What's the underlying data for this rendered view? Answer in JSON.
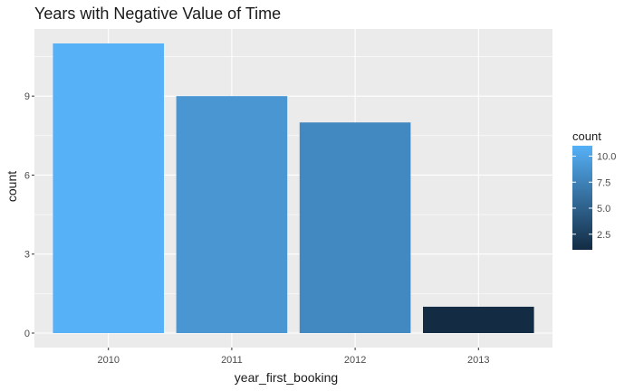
{
  "chart_data": {
    "type": "bar",
    "title": "Years with Negative Value of Time",
    "xlabel": "year_first_booking",
    "ylabel": "count",
    "categories": [
      "2010",
      "2011",
      "2012",
      "2013"
    ],
    "values": [
      11,
      9,
      8,
      1
    ],
    "ylim": [
      -0.55,
      11.55
    ],
    "yticks": [
      0,
      3,
      6,
      9
    ],
    "yticklabels": [
      "0",
      "3",
      "6",
      "9"
    ],
    "grid": true,
    "legend": {
      "title": "count",
      "position": "right",
      "type": "colorbar",
      "range": [
        1,
        11
      ],
      "ticks": [
        2.5,
        5.0,
        7.5,
        10.0
      ],
      "ticklabels": [
        "2.5",
        "5.0",
        "7.5",
        "10.0"
      ],
      "low_color": "#132B43",
      "high_color": "#56B1F7"
    },
    "panel_background": "#EBEBEB",
    "grid_color": "#FFFFFF"
  }
}
